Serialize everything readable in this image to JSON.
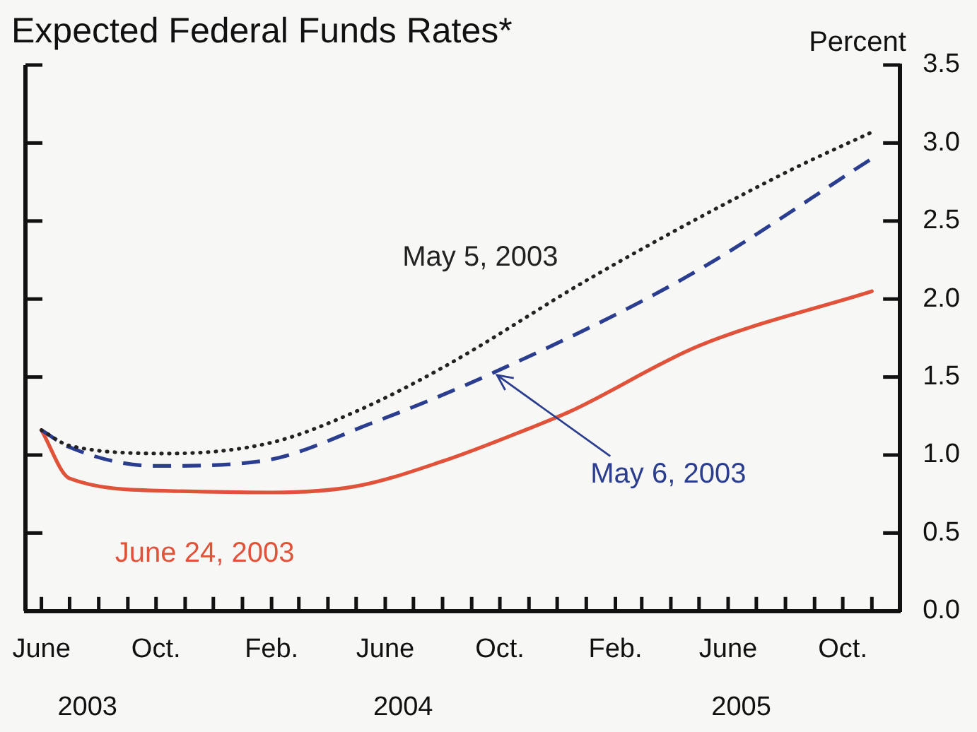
{
  "chart_data": {
    "type": "line",
    "title": "Expected Federal Funds Rates*",
    "ylabel": "Percent",
    "legend": false,
    "marker": "none",
    "xlim": [
      "2003-05-15",
      "2005-12"
    ],
    "xticks": [
      {
        "value": "2003-06",
        "label": "June"
      },
      {
        "value": "2003-07",
        "label": null
      },
      {
        "value": "2003-08",
        "label": null
      },
      {
        "value": "2003-09",
        "label": null
      },
      {
        "value": "2003-10",
        "label": "Oct."
      },
      {
        "value": "2003-11",
        "label": null
      },
      {
        "value": "2003-12",
        "label": null
      },
      {
        "value": "2004-01",
        "label": null
      },
      {
        "value": "2004-02",
        "label": "Feb."
      },
      {
        "value": "2004-03",
        "label": null
      },
      {
        "value": "2004-04",
        "label": null
      },
      {
        "value": "2004-05",
        "label": null
      },
      {
        "value": "2004-06",
        "label": "June"
      },
      {
        "value": "2004-07",
        "label": null
      },
      {
        "value": "2004-08",
        "label": null
      },
      {
        "value": "2004-09",
        "label": null
      },
      {
        "value": "2004-10",
        "label": "Oct."
      },
      {
        "value": "2004-11",
        "label": null
      },
      {
        "value": "2004-12",
        "label": null
      },
      {
        "value": "2005-01",
        "label": null
      },
      {
        "value": "2005-02",
        "label": "Feb."
      },
      {
        "value": "2005-03",
        "label": null
      },
      {
        "value": "2005-04",
        "label": null
      },
      {
        "value": "2005-05",
        "label": null
      },
      {
        "value": "2005-06",
        "label": "June"
      },
      {
        "value": "2005-07",
        "label": null
      },
      {
        "value": "2005-08",
        "label": null
      },
      {
        "value": "2005-09",
        "label": null
      },
      {
        "value": "2005-10",
        "label": "Oct."
      },
      {
        "value": "2005-11",
        "label": null
      }
    ],
    "x2lim": [
      "2003-05-15",
      "2005-12"
    ],
    "x2ticks": [
      {
        "value": "2003-07-20",
        "label": "2003"
      },
      {
        "value": "2004-06-20",
        "label": "2004"
      },
      {
        "value": "2005-06-15",
        "label": "2005"
      }
    ],
    "ylim": [
      0,
      3.5
    ],
    "yticks": [
      {
        "value": 0,
        "label": "0.0"
      },
      {
        "value": 0.5,
        "label": "0.5"
      },
      {
        "value": 1,
        "label": "1.0"
      },
      {
        "value": 1.5,
        "label": "1.5"
      },
      {
        "value": 2,
        "label": "2.0"
      },
      {
        "value": 2.5,
        "label": "2.5"
      },
      {
        "value": 3,
        "label": "3.0"
      },
      {
        "value": 3.5,
        "label": "3.5"
      }
    ],
    "series": [
      {
        "name": "May 5, 2003",
        "color": "#222222",
        "line_style": "dotted",
        "x": [
          "2003-06",
          "2003-07",
          "2003-10-15",
          "2004-02",
          "2004-05",
          "2004-08",
          "2005-01-10",
          "2005-08",
          "2005-11"
        ],
        "values": [
          1.16,
          1.06,
          1.01,
          1.08,
          1.28,
          1.56,
          2.15,
          2.81,
          3.07
        ]
      },
      {
        "name": "May 6, 2003",
        "color": "#2b3d8f",
        "line_style": "dashed",
        "x": [
          "2003-06",
          "2003-07",
          "2003-10",
          "2004-01-20",
          "2004-05-20",
          "2004-09-25",
          "2005-04-20",
          "2005-11"
        ],
        "values": [
          1.16,
          1.05,
          0.93,
          0.96,
          1.21,
          1.53,
          2.15,
          2.9
        ]
      },
      {
        "name": "June 24, 2003",
        "color": "#e0533a",
        "line_style": "solid",
        "x": [
          "2003-06",
          "2003-07",
          "2003-10-15",
          "2004-02",
          "2004-05",
          "2004-08",
          "2004-11",
          "2004-12-15",
          "2005-05",
          "2005-11"
        ],
        "values": [
          1.16,
          0.85,
          0.77,
          0.76,
          0.8,
          0.96,
          1.17,
          1.28,
          1.7,
          2.05
        ]
      }
    ]
  }
}
